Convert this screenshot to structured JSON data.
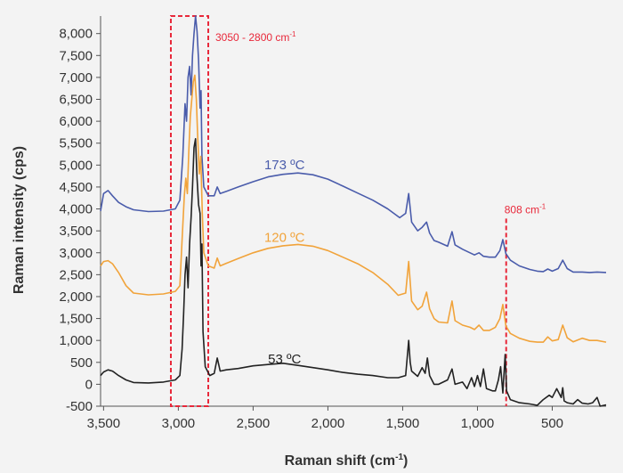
{
  "chart_data": {
    "type": "line",
    "xlabel": "Raman shift (cm",
    "xlabel_sup": "-1",
    "xlabel_end": ")",
    "ylabel": "Raman intensity (cps)",
    "xlim": [
      3520,
      140
    ],
    "ylim": [
      -500,
      8400
    ],
    "x_reversed": true,
    "grid": false,
    "x_ticks": [
      {
        "value": 3500,
        "label": "3,500"
      },
      {
        "value": 3000,
        "label": "3,000"
      },
      {
        "value": 2500,
        "label": "2,500"
      },
      {
        "value": 2000,
        "label": "2,000"
      },
      {
        "value": 1500,
        "label": "1,500"
      },
      {
        "value": 1000,
        "label": "1,000"
      },
      {
        "value": 500,
        "label": "500"
      }
    ],
    "y_ticks": [
      {
        "value": 8000,
        "label": "8,000"
      },
      {
        "value": 7500,
        "label": "7,500"
      },
      {
        "value": 7000,
        "label": "7,000"
      },
      {
        "value": 6500,
        "label": "6,500"
      },
      {
        "value": 6000,
        "label": "6,000"
      },
      {
        "value": 5500,
        "label": "5,500"
      },
      {
        "value": 5000,
        "label": "5,000"
      },
      {
        "value": 4500,
        "label": "4,500"
      },
      {
        "value": 4000,
        "label": "4,000"
      },
      {
        "value": 3500,
        "label": "3,500"
      },
      {
        "value": 3000,
        "label": "3,000"
      },
      {
        "value": 2500,
        "label": "2,500"
      },
      {
        "value": 2000,
        "label": "2,000"
      },
      {
        "value": 1500,
        "label": "1,500"
      },
      {
        "value": 1000,
        "label": "1,000"
      },
      {
        "value": 500,
        "label": "500"
      },
      {
        "value": 0,
        "label": "0"
      },
      {
        "value": -500,
        "label": "-500"
      }
    ],
    "series": [
      {
        "name": "173 ºC",
        "color": "#4a5cab",
        "label_at": [
          2290,
          4910
        ],
        "points": [
          [
            3520,
            3950
          ],
          [
            3500,
            4350
          ],
          [
            3470,
            4420
          ],
          [
            3440,
            4300
          ],
          [
            3400,
            4150
          ],
          [
            3350,
            4050
          ],
          [
            3300,
            3980
          ],
          [
            3200,
            3940
          ],
          [
            3100,
            3950
          ],
          [
            3020,
            4000
          ],
          [
            2990,
            4200
          ],
          [
            2970,
            5200
          ],
          [
            2955,
            6400
          ],
          [
            2945,
            6000
          ],
          [
            2935,
            7000
          ],
          [
            2925,
            7250
          ],
          [
            2915,
            6600
          ],
          [
            2905,
            7500
          ],
          [
            2895,
            8000
          ],
          [
            2885,
            8400
          ],
          [
            2875,
            8050
          ],
          [
            2865,
            7400
          ],
          [
            2855,
            6300
          ],
          [
            2848,
            6700
          ],
          [
            2842,
            5200
          ],
          [
            2830,
            4500
          ],
          [
            2800,
            4300
          ],
          [
            2760,
            4300
          ],
          [
            2740,
            4500
          ],
          [
            2720,
            4350
          ],
          [
            2680,
            4400
          ],
          [
            2600,
            4500
          ],
          [
            2500,
            4620
          ],
          [
            2400,
            4730
          ],
          [
            2300,
            4790
          ],
          [
            2200,
            4820
          ],
          [
            2100,
            4780
          ],
          [
            2000,
            4680
          ],
          [
            1900,
            4520
          ],
          [
            1800,
            4360
          ],
          [
            1700,
            4200
          ],
          [
            1600,
            4000
          ],
          [
            1520,
            3800
          ],
          [
            1480,
            3900
          ],
          [
            1460,
            4350
          ],
          [
            1440,
            3700
          ],
          [
            1400,
            3500
          ],
          [
            1370,
            3580
          ],
          [
            1340,
            3700
          ],
          [
            1320,
            3450
          ],
          [
            1290,
            3280
          ],
          [
            1260,
            3240
          ],
          [
            1200,
            3150
          ],
          [
            1170,
            3480
          ],
          [
            1150,
            3180
          ],
          [
            1100,
            3080
          ],
          [
            1050,
            3000
          ],
          [
            1020,
            2950
          ],
          [
            990,
            3000
          ],
          [
            960,
            2920
          ],
          [
            920,
            2900
          ],
          [
            880,
            2900
          ],
          [
            850,
            3050
          ],
          [
            830,
            3300
          ],
          [
            810,
            2980
          ],
          [
            780,
            2830
          ],
          [
            720,
            2700
          ],
          [
            650,
            2620
          ],
          [
            600,
            2580
          ],
          [
            560,
            2570
          ],
          [
            530,
            2630
          ],
          [
            500,
            2580
          ],
          [
            460,
            2640
          ],
          [
            430,
            2830
          ],
          [
            400,
            2640
          ],
          [
            360,
            2560
          ],
          [
            300,
            2560
          ],
          [
            250,
            2550
          ],
          [
            200,
            2560
          ],
          [
            140,
            2550
          ]
        ]
      },
      {
        "name": "120 ºC",
        "color": "#f1a33a",
        "label_at": [
          2290,
          3250
        ],
        "points": [
          [
            3520,
            2700
          ],
          [
            3500,
            2800
          ],
          [
            3470,
            2820
          ],
          [
            3440,
            2750
          ],
          [
            3400,
            2550
          ],
          [
            3350,
            2250
          ],
          [
            3300,
            2080
          ],
          [
            3200,
            2040
          ],
          [
            3100,
            2060
          ],
          [
            3020,
            2120
          ],
          [
            2990,
            2250
          ],
          [
            2975,
            3300
          ],
          [
            2960,
            4300
          ],
          [
            2950,
            4700
          ],
          [
            2940,
            4350
          ],
          [
            2930,
            5300
          ],
          [
            2920,
            6100
          ],
          [
            2910,
            6500
          ],
          [
            2900,
            6900
          ],
          [
            2890,
            7050
          ],
          [
            2880,
            6500
          ],
          [
            2870,
            5600
          ],
          [
            2860,
            4800
          ],
          [
            2850,
            5200
          ],
          [
            2840,
            3900
          ],
          [
            2830,
            3000
          ],
          [
            2800,
            2700
          ],
          [
            2760,
            2650
          ],
          [
            2740,
            2880
          ],
          [
            2720,
            2700
          ],
          [
            2680,
            2760
          ],
          [
            2600,
            2870
          ],
          [
            2500,
            3000
          ],
          [
            2400,
            3100
          ],
          [
            2300,
            3160
          ],
          [
            2200,
            3190
          ],
          [
            2100,
            3150
          ],
          [
            2000,
            3050
          ],
          [
            1900,
            2900
          ],
          [
            1800,
            2750
          ],
          [
            1700,
            2550
          ],
          [
            1600,
            2280
          ],
          [
            1530,
            2030
          ],
          [
            1480,
            2080
          ],
          [
            1460,
            2800
          ],
          [
            1440,
            1900
          ],
          [
            1400,
            1700
          ],
          [
            1370,
            1780
          ],
          [
            1340,
            2100
          ],
          [
            1320,
            1720
          ],
          [
            1290,
            1500
          ],
          [
            1260,
            1420
          ],
          [
            1200,
            1400
          ],
          [
            1170,
            1900
          ],
          [
            1150,
            1450
          ],
          [
            1100,
            1350
          ],
          [
            1050,
            1300
          ],
          [
            1020,
            1250
          ],
          [
            990,
            1350
          ],
          [
            960,
            1230
          ],
          [
            920,
            1230
          ],
          [
            880,
            1300
          ],
          [
            850,
            1500
          ],
          [
            830,
            1820
          ],
          [
            810,
            1330
          ],
          [
            780,
            1160
          ],
          [
            720,
            1050
          ],
          [
            650,
            980
          ],
          [
            600,
            960
          ],
          [
            560,
            960
          ],
          [
            530,
            1080
          ],
          [
            500,
            990
          ],
          [
            460,
            1020
          ],
          [
            430,
            1350
          ],
          [
            400,
            1060
          ],
          [
            360,
            970
          ],
          [
            300,
            1050
          ],
          [
            250,
            1000
          ],
          [
            200,
            1000
          ],
          [
            140,
            960
          ]
        ]
      },
      {
        "name": "53 ºC",
        "color": "#222222",
        "label_at": [
          2290,
          480
        ],
        "points": [
          [
            3520,
            200
          ],
          [
            3500,
            280
          ],
          [
            3470,
            330
          ],
          [
            3440,
            300
          ],
          [
            3400,
            200
          ],
          [
            3350,
            100
          ],
          [
            3300,
            40
          ],
          [
            3200,
            30
          ],
          [
            3100,
            50
          ],
          [
            3020,
            100
          ],
          [
            2990,
            200
          ],
          [
            2975,
            800
          ],
          [
            2965,
            1600
          ],
          [
            2955,
            2500
          ],
          [
            2945,
            2900
          ],
          [
            2935,
            2200
          ],
          [
            2925,
            3200
          ],
          [
            2915,
            3800
          ],
          [
            2905,
            4500
          ],
          [
            2895,
            5400
          ],
          [
            2885,
            5600
          ],
          [
            2875,
            4700
          ],
          [
            2865,
            4100
          ],
          [
            2855,
            3900
          ],
          [
            2848,
            2700
          ],
          [
            2842,
            3200
          ],
          [
            2835,
            1200
          ],
          [
            2820,
            400
          ],
          [
            2790,
            200
          ],
          [
            2760,
            250
          ],
          [
            2740,
            600
          ],
          [
            2720,
            300
          ],
          [
            2680,
            330
          ],
          [
            2600,
            360
          ],
          [
            2500,
            420
          ],
          [
            2400,
            450
          ],
          [
            2300,
            480
          ],
          [
            2200,
            430
          ],
          [
            2100,
            380
          ],
          [
            2000,
            330
          ],
          [
            1900,
            270
          ],
          [
            1800,
            230
          ],
          [
            1700,
            200
          ],
          [
            1600,
            150
          ],
          [
            1530,
            150
          ],
          [
            1480,
            200
          ],
          [
            1460,
            1000
          ],
          [
            1450,
            500
          ],
          [
            1440,
            300
          ],
          [
            1400,
            180
          ],
          [
            1370,
            380
          ],
          [
            1350,
            250
          ],
          [
            1335,
            600
          ],
          [
            1320,
            200
          ],
          [
            1290,
            0
          ],
          [
            1260,
            0
          ],
          [
            1200,
            100
          ],
          [
            1170,
            350
          ],
          [
            1150,
            0
          ],
          [
            1100,
            50
          ],
          [
            1070,
            -100
          ],
          [
            1040,
            150
          ],
          [
            1020,
            -50
          ],
          [
            1000,
            200
          ],
          [
            980,
            -50
          ],
          [
            960,
            350
          ],
          [
            940,
            -100
          ],
          [
            900,
            -150
          ],
          [
            880,
            -150
          ],
          [
            860,
            100
          ],
          [
            845,
            400
          ],
          [
            830,
            -200
          ],
          [
            815,
            680
          ],
          [
            805,
            -150
          ],
          [
            780,
            -350
          ],
          [
            720,
            -420
          ],
          [
            650,
            -450
          ],
          [
            600,
            -480
          ],
          [
            560,
            -350
          ],
          [
            520,
            -250
          ],
          [
            500,
            -300
          ],
          [
            470,
            -100
          ],
          [
            440,
            -300
          ],
          [
            430,
            -80
          ],
          [
            420,
            -380
          ],
          [
            400,
            -420
          ],
          [
            360,
            -450
          ],
          [
            330,
            -350
          ],
          [
            300,
            -430
          ],
          [
            260,
            -450
          ],
          [
            230,
            -420
          ],
          [
            200,
            -300
          ],
          [
            180,
            -500
          ],
          [
            140,
            -470
          ]
        ]
      }
    ],
    "annotations": [
      {
        "type": "box",
        "x_range": [
          3050,
          2800
        ],
        "y_range": [
          -500,
          8400
        ],
        "color": "#e8283a",
        "text": "3050 - 2800 cm",
        "text_sup": "-1"
      },
      {
        "type": "vline",
        "x": 808,
        "y_top": 3780,
        "color": "#e8283a",
        "text": "808 cm",
        "text_sup": "-1"
      }
    ]
  }
}
